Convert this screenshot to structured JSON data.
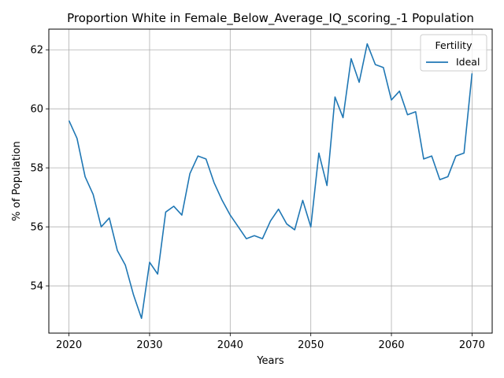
{
  "chart_data": {
    "type": "line",
    "title": "Proportion White in Female_Below_Average_IQ_scoring_-1 Population",
    "xlabel": "Years",
    "ylabel": "% of Population",
    "xlim": [
      2017.5,
      2072.5
    ],
    "ylim": [
      52.4,
      62.7
    ],
    "xticks": [
      2020,
      2030,
      2040,
      2050,
      2060,
      2070
    ],
    "yticks": [
      54,
      56,
      58,
      60,
      62
    ],
    "grid": true,
    "legend": {
      "title": "Fertility",
      "placement": "top-right"
    },
    "series": [
      {
        "name": "Ideal",
        "color": "#1f77b4",
        "x": [
          2020,
          2021,
          2022,
          2023,
          2024,
          2025,
          2026,
          2027,
          2028,
          2029,
          2030,
          2031,
          2032,
          2033,
          2034,
          2035,
          2036,
          2037,
          2038,
          2039,
          2040,
          2041,
          2042,
          2043,
          2044,
          2045,
          2046,
          2047,
          2048,
          2049,
          2050,
          2051,
          2052,
          2053,
          2054,
          2055,
          2056,
          2057,
          2058,
          2059,
          2060,
          2061,
          2062,
          2063,
          2064,
          2065,
          2066,
          2067,
          2068,
          2069,
          2070
        ],
        "values": [
          59.6,
          59.0,
          57.7,
          57.1,
          56.0,
          56.3,
          55.2,
          54.7,
          53.7,
          52.9,
          54.8,
          54.4,
          56.5,
          56.7,
          56.4,
          57.8,
          58.4,
          58.3,
          57.5,
          56.9,
          56.4,
          56.0,
          55.6,
          55.7,
          55.6,
          56.2,
          56.6,
          56.1,
          55.9,
          56.9,
          56.0,
          58.5,
          57.4,
          60.4,
          59.7,
          61.7,
          60.9,
          62.2,
          61.5,
          61.4,
          60.3,
          60.6,
          59.8,
          59.9,
          58.3,
          58.4,
          57.6,
          57.7,
          58.4,
          58.5,
          61.2
        ]
      }
    ]
  }
}
